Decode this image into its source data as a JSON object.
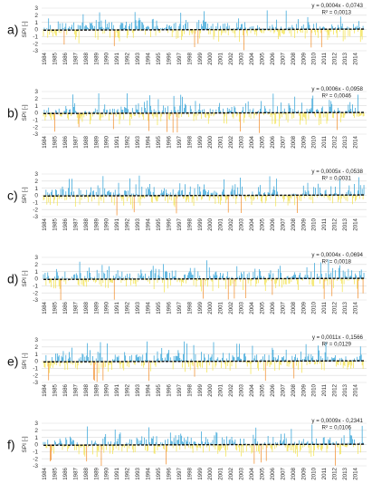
{
  "chart_data": [
    {
      "type": "bar",
      "panel_label": "a)",
      "ylabel": "SPI [-]",
      "ylim": [
        -3,
        3
      ],
      "yticks": [
        -3,
        -2,
        -1,
        0,
        1,
        2,
        3
      ],
      "x_labels": [
        "1984",
        "1985",
        "1986",
        "1987",
        "1988",
        "1989",
        "1990",
        "1991",
        "1992",
        "1993",
        "1994",
        "1995",
        "1996",
        "1997",
        "1998",
        "1999",
        "2000",
        "2001",
        "2002",
        "2003",
        "2004",
        "2005",
        "2006",
        "2007",
        "2008",
        "2009",
        "2010",
        "2011",
        "2012",
        "2013",
        "2014"
      ],
      "trend_equation": "y = 0,0004x - 0,0743",
      "r_squared": "R² = 0,0013",
      "seed": 11,
      "colors": {
        "positive": "#2a9fd6",
        "negative": "#f2e24a",
        "extreme_negative": "#f28c28",
        "trend": "#111111",
        "grid": "#d9d9d9"
      }
    },
    {
      "type": "bar",
      "panel_label": "b)",
      "ylabel": "SPI [-]",
      "ylim": [
        -3,
        3
      ],
      "yticks": [
        -3,
        -2,
        -1,
        0,
        1,
        2,
        3
      ],
      "x_labels": [
        "1984",
        "1985",
        "1986",
        "1987",
        "1988",
        "1989",
        "1990",
        "1991",
        "1992",
        "1993",
        "1994",
        "1995",
        "1996",
        "1997",
        "1998",
        "1999",
        "2000",
        "2001",
        "2002",
        "2003",
        "2004",
        "2005",
        "2006",
        "2007",
        "2008",
        "2009",
        "2010",
        "2011",
        "2012",
        "2013",
        "2014"
      ],
      "trend_equation": "y = 0,0006x - 0,0958",
      "r_squared": "R² = 0,0046",
      "seed": 23,
      "colors": {
        "positive": "#2a9fd6",
        "negative": "#f2e24a",
        "extreme_negative": "#f28c28",
        "trend": "#111111",
        "grid": "#d9d9d9"
      }
    },
    {
      "type": "bar",
      "panel_label": "c)",
      "ylabel": "SPI [-]",
      "ylim": [
        -3,
        3
      ],
      "yticks": [
        -3,
        -2,
        -1,
        0,
        1,
        2,
        3
      ],
      "x_labels": [
        "1984",
        "1985",
        "1986",
        "1987",
        "1988",
        "1989",
        "1990",
        "1991",
        "1992",
        "1993",
        "1994",
        "1995",
        "1996",
        "1997",
        "1998",
        "1999",
        "2000",
        "2001",
        "2002",
        "2003",
        "2004",
        "2005",
        "2006",
        "2007",
        "2008",
        "2009",
        "2010",
        "2011",
        "2012",
        "2013",
        "2014"
      ],
      "trend_equation": "y = 0,0005x - 0,0538",
      "r_squared": "R² = 0,0031",
      "seed": 37,
      "colors": {
        "positive": "#2a9fd6",
        "negative": "#f2e24a",
        "extreme_negative": "#f28c28",
        "trend": "#111111",
        "grid": "#d9d9d9"
      }
    },
    {
      "type": "bar",
      "panel_label": "d)",
      "ylabel": "SPI [-]",
      "ylim": [
        -3,
        3
      ],
      "yticks": [
        -3,
        -2,
        -1,
        0,
        1,
        2,
        3
      ],
      "x_labels": [
        "1984",
        "1985",
        "1986",
        "1987",
        "1988",
        "1989",
        "1990",
        "1991",
        "1992",
        "1993",
        "1994",
        "1995",
        "1996",
        "1997",
        "1998",
        "1999",
        "2000",
        "2001",
        "2002",
        "2003",
        "2004",
        "2005",
        "2006",
        "2007",
        "2008",
        "2009",
        "2010",
        "2011",
        "2012",
        "2013",
        "2014"
      ],
      "trend_equation": "y = 0,0004x - 0,0694",
      "r_squared": "R² = 0,0018",
      "seed": 51,
      "colors": {
        "positive": "#2a9fd6",
        "negative": "#f2e24a",
        "extreme_negative": "#f28c28",
        "trend": "#111111",
        "grid": "#d9d9d9"
      }
    },
    {
      "type": "bar",
      "panel_label": "e)",
      "ylabel": "SPI [-]",
      "ylim": [
        -3,
        3
      ],
      "yticks": [
        -3,
        -2,
        -1,
        0,
        1,
        2,
        3
      ],
      "x_labels": [
        "1984",
        "1985",
        "1986",
        "1987",
        "1988",
        "1989",
        "1990",
        "1991",
        "1992",
        "1993",
        "1994",
        "1995",
        "1996",
        "1997",
        "1998",
        "1999",
        "2000",
        "2001",
        "2002",
        "2003",
        "2004",
        "2005",
        "2006",
        "2007",
        "2008",
        "2009",
        "2010",
        "2011",
        "2012",
        "2013",
        "2014"
      ],
      "trend_equation": "y = 0,0011x - 0,1566",
      "r_squared": "R² = 0,0129",
      "seed": 67,
      "colors": {
        "positive": "#2a9fd6",
        "negative": "#f2e24a",
        "extreme_negative": "#f28c28",
        "trend": "#111111",
        "grid": "#d9d9d9"
      }
    },
    {
      "type": "bar",
      "panel_label": "f)",
      "ylabel": "SPI [-]",
      "ylim": [
        -3,
        3
      ],
      "yticks": [
        -3,
        -2,
        -1,
        0,
        1,
        2,
        3
      ],
      "x_labels": [
        "1984",
        "1985",
        "1986",
        "1987",
        "1988",
        "1989",
        "1990",
        "1991",
        "1992",
        "1993",
        "1994",
        "1995",
        "1996",
        "1997",
        "1998",
        "1999",
        "2000",
        "2001",
        "2002",
        "2003",
        "2004",
        "2005",
        "2006",
        "2007",
        "2008",
        "2009",
        "2010",
        "2011",
        "2012",
        "2013",
        "2014"
      ],
      "trend_equation": "y = 0,0009x - 0,2341",
      "r_squared": "R² = 0,0106",
      "seed": 83,
      "colors": {
        "positive": "#2a9fd6",
        "negative": "#f2e24a",
        "extreme_negative": "#f28c28",
        "trend": "#111111",
        "grid": "#d9d9d9"
      }
    }
  ]
}
